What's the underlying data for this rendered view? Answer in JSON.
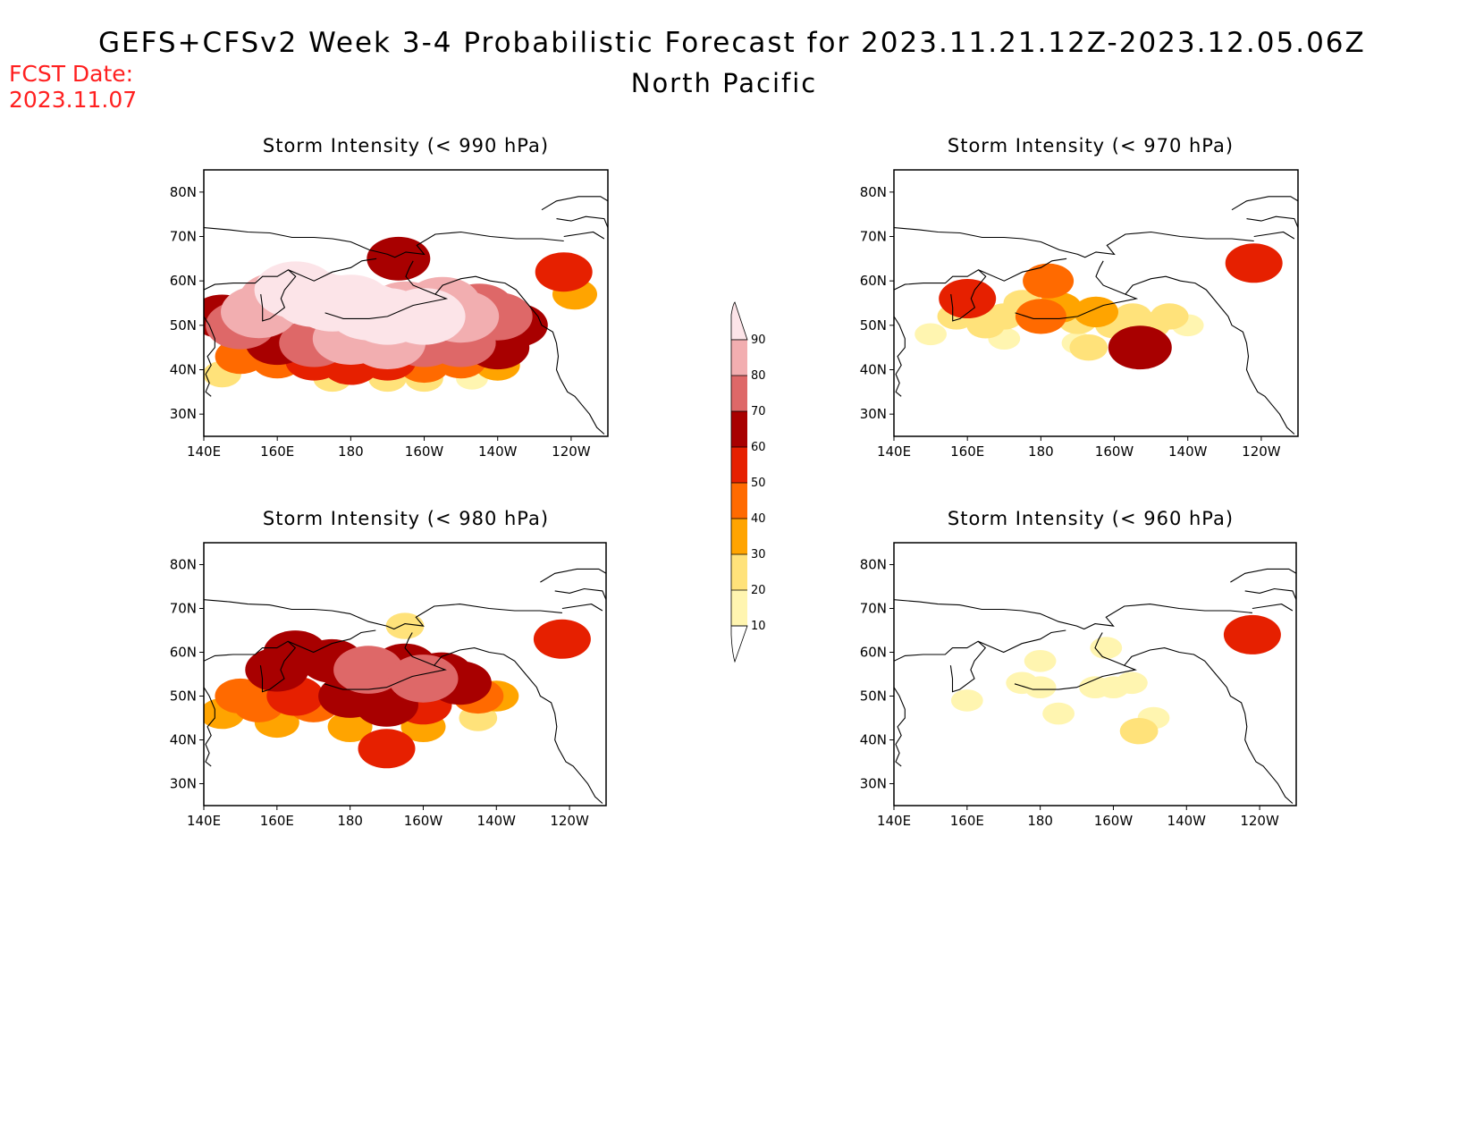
{
  "title": "GEFS+CFSv2 Week 3-4 Probabilistic Forecast for 2023.11.21.12Z-2023.12.05.06Z",
  "subtitle": "North Pacific",
  "forecast_date": {
    "label": "FCST Date:",
    "value": "2023.11.07"
  },
  "colors": {
    "bins": [
      "#fff5b0",
      "#ffe27a",
      "#ffa400",
      "#ff6a00",
      "#e62000",
      "#a80000",
      "#de6868",
      "#f2aeb0",
      "#fce4e8"
    ],
    "land_outline": "#000000"
  },
  "colorbar": {
    "labels": [
      "10",
      "20",
      "30",
      "40",
      "50",
      "60",
      "70",
      "80",
      "90"
    ]
  },
  "axes": {
    "lon_labels": [
      "140E",
      "160E",
      "180",
      "160W",
      "140W",
      "120W"
    ],
    "lat_labels": [
      "80N",
      "70N",
      "60N",
      "50N",
      "40N",
      "30N"
    ]
  },
  "panels": [
    {
      "id": "p990",
      "title": "Storm Intensity (< 990 hPa)"
    },
    {
      "id": "p970",
      "title": "Storm Intensity (< 970 hPa)"
    },
    {
      "id": "p980",
      "title": "Storm Intensity (< 980 hPa)"
    },
    {
      "id": "p960",
      "title": "Storm Intensity (< 960 hPa)"
    }
  ],
  "chart_data": {
    "type": "heatmap",
    "variable": "probability (%)",
    "lon_range": [
      "140E",
      "110W"
    ],
    "lat_range": [
      "25N",
      "85N"
    ],
    "bins": [
      10,
      20,
      30,
      40,
      50,
      60,
      70,
      80,
      90
    ],
    "panels": [
      {
        "threshold_hpa": 990,
        "cells": [
          {
            "lon": 145,
            "lat": 52,
            "p": 60
          },
          {
            "lon": 150,
            "lat": 50,
            "p": 70
          },
          {
            "lon": 155,
            "lat": 53,
            "p": 80
          },
          {
            "lon": 160,
            "lat": 56,
            "p": 80
          },
          {
            "lon": 165,
            "lat": 58,
            "p": 90
          },
          {
            "lon": 170,
            "lat": 56,
            "p": 90
          },
          {
            "lon": 175,
            "lat": 55,
            "p": 90
          },
          {
            "lon": 180,
            "lat": 55,
            "p": 90
          },
          {
            "lon": 185,
            "lat": 53,
            "p": 90
          },
          {
            "lon": 190,
            "lat": 52,
            "p": 90
          },
          {
            "lon": 195,
            "lat": 54,
            "p": 80
          },
          {
            "lon": 200,
            "lat": 52,
            "p": 90
          },
          {
            "lon": 205,
            "lat": 55,
            "p": 80
          },
          {
            "lon": 210,
            "lat": 52,
            "p": 80
          },
          {
            "lon": 215,
            "lat": 54,
            "p": 70
          },
          {
            "lon": 220,
            "lat": 52,
            "p": 70
          },
          {
            "lon": 225,
            "lat": 50,
            "p": 60
          },
          {
            "lon": 160,
            "lat": 46,
            "p": 60
          },
          {
            "lon": 170,
            "lat": 46,
            "p": 70
          },
          {
            "lon": 180,
            "lat": 47,
            "p": 80
          },
          {
            "lon": 190,
            "lat": 46,
            "p": 80
          },
          {
            "lon": 200,
            "lat": 46,
            "p": 70
          },
          {
            "lon": 210,
            "lat": 46,
            "p": 70
          },
          {
            "lon": 220,
            "lat": 45,
            "p": 60
          },
          {
            "lon": 150,
            "lat": 43,
            "p": 40
          },
          {
            "lon": 160,
            "lat": 42,
            "p": 40
          },
          {
            "lon": 170,
            "lat": 42,
            "p": 50
          },
          {
            "lon": 180,
            "lat": 41,
            "p": 50
          },
          {
            "lon": 190,
            "lat": 42,
            "p": 50
          },
          {
            "lon": 200,
            "lat": 41,
            "p": 40
          },
          {
            "lon": 210,
            "lat": 42,
            "p": 40
          },
          {
            "lon": 220,
            "lat": 41,
            "p": 30
          },
          {
            "lon": 145,
            "lat": 39,
            "p": 20
          },
          {
            "lon": 175,
            "lat": 38,
            "p": 20
          },
          {
            "lon": 190,
            "lat": 38,
            "p": 20
          },
          {
            "lon": 200,
            "lat": 38,
            "p": 20
          },
          {
            "lon": 213,
            "lat": 38,
            "p": 10
          },
          {
            "lon": 193,
            "lat": 65,
            "p": 60
          },
          {
            "lon": 238,
            "lat": 62,
            "p": 50
          },
          {
            "lon": 241,
            "lat": 57,
            "p": 30
          }
        ]
      },
      {
        "threshold_hpa": 970,
        "cells": [
          {
            "lon": 160,
            "lat": 56,
            "p": 50
          },
          {
            "lon": 157,
            "lat": 52,
            "p": 20
          },
          {
            "lon": 165,
            "lat": 50,
            "p": 20
          },
          {
            "lon": 170,
            "lat": 52,
            "p": 20
          },
          {
            "lon": 175,
            "lat": 55,
            "p": 20
          },
          {
            "lon": 180,
            "lat": 52,
            "p": 40
          },
          {
            "lon": 185,
            "lat": 54,
            "p": 30
          },
          {
            "lon": 190,
            "lat": 51,
            "p": 20
          },
          {
            "lon": 195,
            "lat": 53,
            "p": 30
          },
          {
            "lon": 200,
            "lat": 50,
            "p": 20
          },
          {
            "lon": 205,
            "lat": 52,
            "p": 20
          },
          {
            "lon": 210,
            "lat": 50,
            "p": 20
          },
          {
            "lon": 215,
            "lat": 52,
            "p": 20
          },
          {
            "lon": 182,
            "lat": 60,
            "p": 40
          },
          {
            "lon": 207,
            "lat": 45,
            "p": 60
          },
          {
            "lon": 193,
            "lat": 45,
            "p": 20
          },
          {
            "lon": 238,
            "lat": 64,
            "p": 50
          },
          {
            "lon": 150,
            "lat": 48,
            "p": 10
          },
          {
            "lon": 170,
            "lat": 47,
            "p": 10
          },
          {
            "lon": 190,
            "lat": 46,
            "p": 10
          },
          {
            "lon": 210,
            "lat": 46,
            "p": 10
          },
          {
            "lon": 220,
            "lat": 50,
            "p": 10
          }
        ]
      },
      {
        "threshold_hpa": 980,
        "cells": [
          {
            "lon": 160,
            "lat": 56,
            "p": 60
          },
          {
            "lon": 165,
            "lat": 60,
            "p": 60
          },
          {
            "lon": 175,
            "lat": 58,
            "p": 60
          },
          {
            "lon": 185,
            "lat": 56,
            "p": 70
          },
          {
            "lon": 190,
            "lat": 53,
            "p": 60
          },
          {
            "lon": 195,
            "lat": 57,
            "p": 60
          },
          {
            "lon": 200,
            "lat": 54,
            "p": 70
          },
          {
            "lon": 205,
            "lat": 55,
            "p": 60
          },
          {
            "lon": 210,
            "lat": 53,
            "p": 60
          },
          {
            "lon": 180,
            "lat": 50,
            "p": 60
          },
          {
            "lon": 190,
            "lat": 48,
            "p": 60
          },
          {
            "lon": 200,
            "lat": 48,
            "p": 50
          },
          {
            "lon": 150,
            "lat": 50,
            "p": 40
          },
          {
            "lon": 155,
            "lat": 48,
            "p": 40
          },
          {
            "lon": 165,
            "lat": 50,
            "p": 50
          },
          {
            "lon": 170,
            "lat": 48,
            "p": 40
          },
          {
            "lon": 215,
            "lat": 50,
            "p": 40
          },
          {
            "lon": 220,
            "lat": 50,
            "p": 30
          },
          {
            "lon": 145,
            "lat": 46,
            "p": 30
          },
          {
            "lon": 160,
            "lat": 44,
            "p": 30
          },
          {
            "lon": 180,
            "lat": 43,
            "p": 30
          },
          {
            "lon": 200,
            "lat": 43,
            "p": 30
          },
          {
            "lon": 215,
            "lat": 45,
            "p": 20
          },
          {
            "lon": 190,
            "lat": 38,
            "p": 50
          },
          {
            "lon": 238,
            "lat": 63,
            "p": 50
          },
          {
            "lon": 195,
            "lat": 66,
            "p": 20
          }
        ]
      },
      {
        "threshold_hpa": 960,
        "cells": [
          {
            "lon": 180,
            "lat": 58,
            "p": 10
          },
          {
            "lon": 175,
            "lat": 53,
            "p": 10
          },
          {
            "lon": 180,
            "lat": 52,
            "p": 10
          },
          {
            "lon": 195,
            "lat": 52,
            "p": 10
          },
          {
            "lon": 200,
            "lat": 52,
            "p": 10
          },
          {
            "lon": 205,
            "lat": 53,
            "p": 10
          },
          {
            "lon": 160,
            "lat": 49,
            "p": 10
          },
          {
            "lon": 185,
            "lat": 46,
            "p": 10
          },
          {
            "lon": 207,
            "lat": 42,
            "p": 20
          },
          {
            "lon": 211,
            "lat": 45,
            "p": 10
          },
          {
            "lon": 198,
            "lat": 61,
            "p": 10
          },
          {
            "lon": 238,
            "lat": 64,
            "p": 50
          }
        ]
      }
    ]
  }
}
